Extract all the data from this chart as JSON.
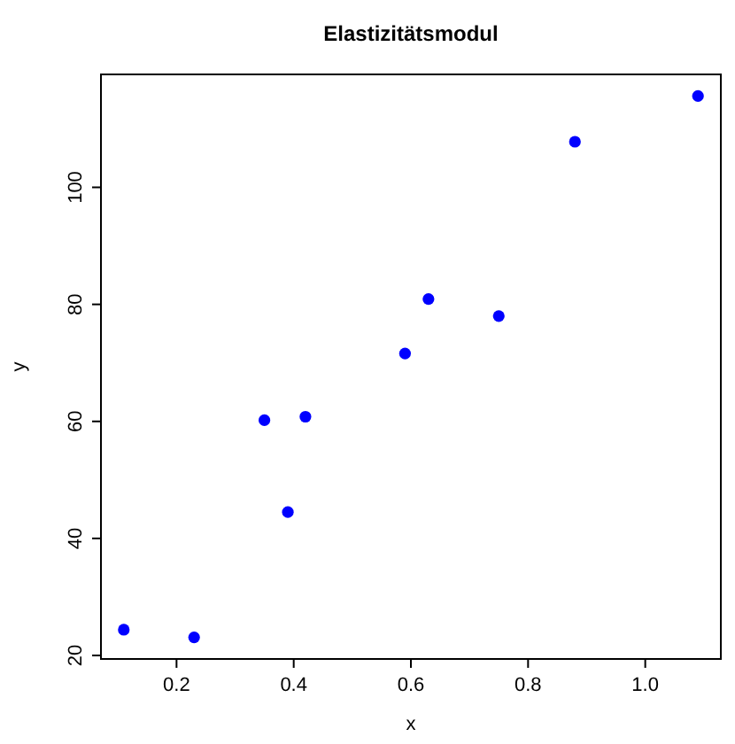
{
  "chart_data": {
    "type": "scatter",
    "title": "Elastizitätsmodul",
    "xlabel": "x",
    "ylabel": "y",
    "x": [
      0.11,
      0.23,
      0.35,
      0.39,
      0.42,
      0.59,
      0.63,
      0.75,
      0.88,
      1.09
    ],
    "values": [
      24.4,
      23.1,
      60.2,
      44.5,
      60.8,
      71.6,
      80.9,
      78.0,
      107.8,
      115.6
    ],
    "color": "#0000ff",
    "marker": "circle",
    "xlim": [
      0.071,
      1.129
    ],
    "ylim": [
      19.4,
      119.3
    ],
    "xticks": [
      {
        "value": 0.2,
        "label": "0.2"
      },
      {
        "value": 0.4,
        "label": "0.4"
      },
      {
        "value": 0.6,
        "label": "0.6"
      },
      {
        "value": 0.8,
        "label": "0.8"
      },
      {
        "value": 1.0,
        "label": "1.0"
      }
    ],
    "yticks": [
      20,
      40,
      60,
      80,
      100
    ],
    "grid": false
  }
}
